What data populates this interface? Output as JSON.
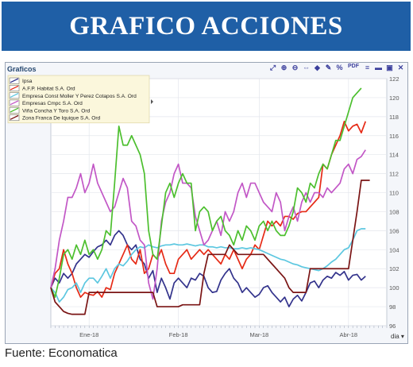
{
  "banner": {
    "title": "GRAFICO ACCIONES"
  },
  "panel": {
    "title": "Graficos"
  },
  "toolbar": {
    "tools": [
      {
        "icon": "expand-icon",
        "glyph": "⤢"
      },
      {
        "icon": "zoom-in-icon",
        "glyph": "⊕"
      },
      {
        "icon": "zoom-out-icon",
        "glyph": "⊖"
      },
      {
        "icon": "pan-icon",
        "glyph": "⇔"
      },
      {
        "icon": "indicator-icon",
        "glyph": "◆"
      },
      {
        "icon": "draw-icon",
        "glyph": "✎"
      },
      {
        "icon": "percent-icon",
        "glyph": "%"
      },
      {
        "icon": "pdf-icon",
        "glyph": "PDF"
      },
      {
        "icon": "menu-icon",
        "glyph": "≡"
      },
      {
        "icon": "minimize-icon",
        "glyph": "▬"
      },
      {
        "icon": "restore-icon",
        "glyph": "▣"
      },
      {
        "icon": "close-icon",
        "glyph": "✕"
      }
    ]
  },
  "range_button": {
    "label": "dia ▾"
  },
  "source": "Fuente: Economatica",
  "chart_data": {
    "type": "line",
    "ylim": [
      96,
      122
    ],
    "yticks": [
      96,
      98,
      100,
      102,
      104,
      106,
      108,
      110,
      112,
      114,
      116,
      118,
      120,
      122
    ],
    "xlim": [
      0,
      79
    ],
    "xticks": [
      {
        "x": 9,
        "label": "Ene-18"
      },
      {
        "x": 30,
        "label": "Feb-18"
      },
      {
        "x": 49,
        "label": "Mar-18"
      },
      {
        "x": 70,
        "label": "Abr-18"
      }
    ],
    "grid": true,
    "legend_position": "top-left",
    "series": [
      {
        "name": "Ipsa",
        "color": "#33338c",
        "values": [
          100,
          101,
          100.5,
          101.5,
          101,
          101.5,
          102.5,
          103,
          103.5,
          103.2,
          103.8,
          104.3,
          104.5,
          105,
          104.5,
          105.5,
          106,
          105.5,
          104.5,
          104,
          104.5,
          103,
          102.5,
          101,
          101.8,
          99.5,
          101,
          100,
          98.8,
          100.5,
          101,
          100.5,
          100,
          101,
          100.8,
          101.5,
          101.2,
          100,
          99.5,
          99.6,
          100.8,
          101.5,
          102,
          101,
          100.5,
          99.5,
          100,
          99.5,
          99,
          99.3,
          100,
          100.2,
          99.5,
          99,
          98.5,
          99,
          98,
          98.8,
          99.2,
          98.6,
          99.5,
          100.5,
          100.7,
          100,
          100.8,
          101.2,
          101,
          101.6,
          101.3,
          101.7,
          100.8,
          101.3,
          101.4,
          100.8,
          101.2
        ]
      },
      {
        "name": "A.F.P. Habitat S.A. Ord",
        "color": "#e62a16",
        "values": [
          100,
          101.5,
          102,
          104,
          102.5,
          101.5,
          100,
          99,
          99.5,
          99.3,
          99.2,
          99.6,
          99,
          100,
          99.8,
          101.5,
          102.5,
          103.5,
          104.5,
          103,
          102.5,
          104,
          101.5,
          102,
          103.5,
          103,
          104,
          102.5,
          101.5,
          101.5,
          103,
          103.5,
          104,
          103,
          103.5,
          104,
          103.5,
          104,
          103.5,
          103,
          102.5,
          103.5,
          103,
          104,
          103,
          102,
          103,
          103.5,
          104.5,
          104,
          105.5,
          107,
          106.5,
          107,
          106.5,
          107.5,
          107.5,
          107.2,
          107.8,
          108,
          108,
          108.5,
          109,
          109.5,
          113,
          112.5,
          114,
          115,
          116,
          117.5,
          116.5,
          117,
          117.2,
          116.3,
          117.5
        ]
      },
      {
        "name": "Empresa Const Moller Y Perez Cotapos S.A. Ord",
        "color": "#5cc7e0",
        "values": [
          100,
          99.5,
          98.5,
          99,
          99.8,
          100,
          100.5,
          99.5,
          100.5,
          101,
          101,
          100.5,
          101.2,
          102,
          101,
          102,
          102.5,
          102.3,
          102.8,
          103.5,
          104,
          104.3,
          104.2,
          104.5,
          104.3,
          104.2,
          104.4,
          104.5,
          104.5,
          104.6,
          104.5,
          104.5,
          104.6,
          104.5,
          104.4,
          104.5,
          104.5,
          104.3,
          104.3,
          104.2,
          104.3,
          104.2,
          104.2,
          104.1,
          104.1,
          104.2,
          104.1,
          104.2,
          104.1,
          104.0,
          103.8,
          103.6,
          103.4,
          103.2,
          103.0,
          102.9,
          102.7,
          102.5,
          102.4,
          102.2,
          102.1,
          102.0,
          101.9,
          101.8,
          102.0,
          102.3,
          102.7,
          103.0,
          103.5,
          104.0,
          104.2,
          105.0,
          106.0,
          106.2,
          106.2
        ]
      },
      {
        "name": "Empresas Cmpc S.A. Ord",
        "color": "#c257c6",
        "values": [
          100,
          102,
          105,
          107,
          109.5,
          109.5,
          110.5,
          112,
          110,
          111,
          113,
          111,
          110,
          109,
          108,
          108.5,
          110,
          111.5,
          110.5,
          107,
          106.5,
          105,
          104.5,
          100.5,
          98.8,
          102,
          107,
          109,
          110,
          112,
          113,
          111,
          111,
          110.5,
          107.5,
          106,
          104.5,
          105,
          106,
          107,
          105.5,
          108,
          107,
          108,
          110,
          111,
          109.5,
          111,
          111,
          110,
          109,
          108.5,
          108,
          110,
          109,
          106,
          107.5,
          108.5,
          107,
          109,
          110,
          109,
          110,
          110,
          109.5,
          110.5,
          110,
          110.5,
          111,
          112.5,
          113,
          112,
          113.5,
          113.8,
          114.5
        ]
      },
      {
        "name": "Viña Concha Y Toro S.A. Ord",
        "color": "#4cbf2e",
        "values": [
          100,
          99,
          101,
          103.5,
          104,
          103,
          104.5,
          103.5,
          105,
          103.5,
          104,
          103,
          104,
          106,
          105.5,
          111,
          117,
          115,
          115,
          116,
          115,
          114,
          112,
          106,
          103.5,
          103,
          106.5,
          110,
          111,
          109.5,
          111,
          112,
          111,
          111,
          106,
          108,
          108.5,
          108,
          106,
          107,
          107.5,
          106,
          105.5,
          104.5,
          106,
          105,
          106.5,
          106,
          105,
          106.5,
          107,
          106,
          107,
          106,
          105.5,
          105.5,
          106.5,
          108,
          110.5,
          110,
          109,
          111,
          110.5,
          112,
          113,
          112.5,
          114,
          115.5,
          115.5,
          117,
          118.5,
          120,
          120.5,
          121
        ]
      },
      {
        "name": "Zona Franca De Iquique S.A. Ord",
        "color": "#7a1414",
        "values": [
          100,
          98.5,
          98,
          97.5,
          97.3,
          97.2,
          97.2,
          97.2,
          97.2,
          99.5,
          99.5,
          99.5,
          99.5,
          99.5,
          99.5,
          99.5,
          99.5,
          99.5,
          99.5,
          99.5,
          99.5,
          99.5,
          99.5,
          99.5,
          99.5,
          98,
          98,
          98,
          98,
          98,
          98,
          98.2,
          98.2,
          98.2,
          98.2,
          98.2,
          101.5,
          103.5,
          103.5,
          103.5,
          103.5,
          103.5,
          104.5,
          104,
          103.5,
          103.5,
          103.5,
          103.5,
          103.5,
          103.5,
          103.5,
          103,
          102.5,
          102,
          101.5,
          101,
          100,
          99.5,
          99.5,
          99.5,
          99.5,
          102,
          102,
          102,
          102,
          102,
          102,
          102,
          102,
          102,
          102,
          105,
          108,
          111.3,
          111.3,
          111.3
        ]
      }
    ]
  }
}
